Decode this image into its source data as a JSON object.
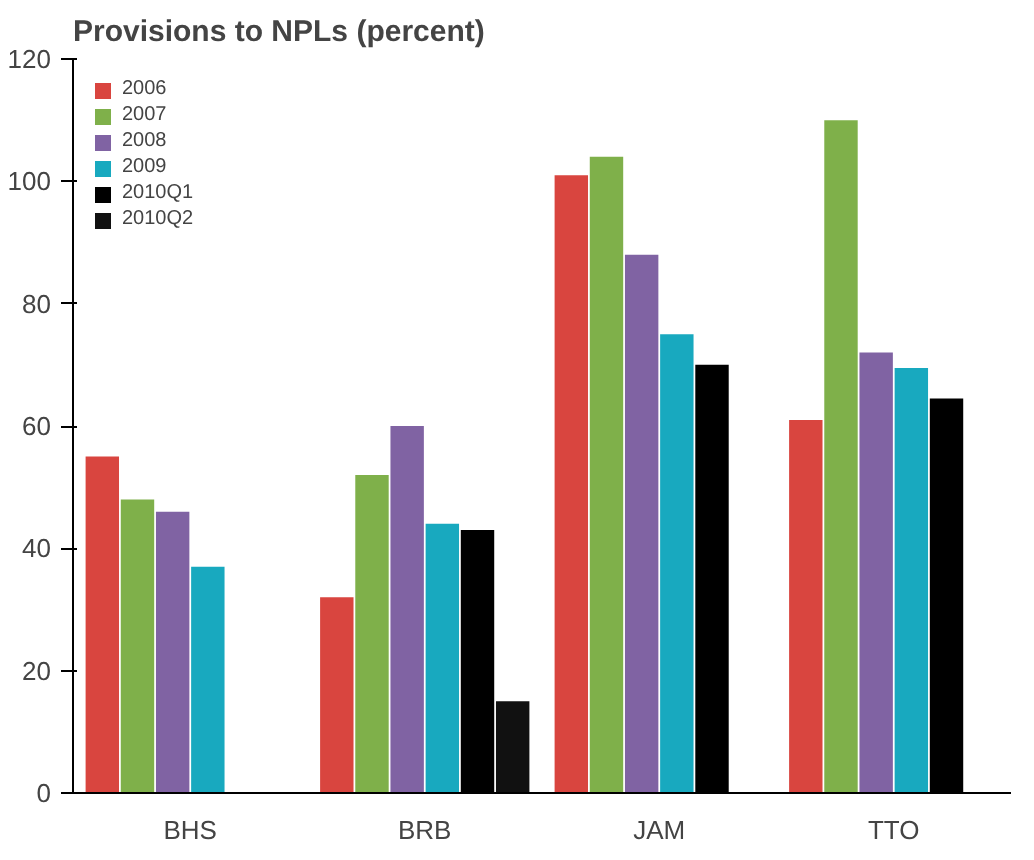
{
  "chart_data": {
    "type": "bar",
    "title": "Provisions to NPLs (percent)",
    "categories": [
      "BHS",
      "BRB",
      "JAM",
      "TTO"
    ],
    "series": [
      {
        "name": "2006",
        "color": "#d9453f",
        "values": [
          55,
          32,
          101,
          61
        ]
      },
      {
        "name": "2007",
        "color": "#7fb04a",
        "values": [
          48,
          52,
          104,
          110
        ]
      },
      {
        "name": "2008",
        "color": "#8063a3",
        "values": [
          46,
          60,
          88,
          72
        ]
      },
      {
        "name": "2009",
        "color": "#18a9bf",
        "values": [
          37,
          44,
          75,
          69.5
        ]
      },
      {
        "name": "2010Q1",
        "color": "#000000",
        "values": [
          null,
          43,
          70,
          64.5
        ]
      },
      {
        "name": "2010Q2",
        "color": "#111111",
        "values": [
          null,
          15,
          null,
          null
        ]
      }
    ],
    "ylim": [
      0,
      120
    ],
    "yticks": [
      0,
      20,
      40,
      60,
      80,
      100,
      120
    ],
    "grid": false,
    "legend": "top left"
  }
}
